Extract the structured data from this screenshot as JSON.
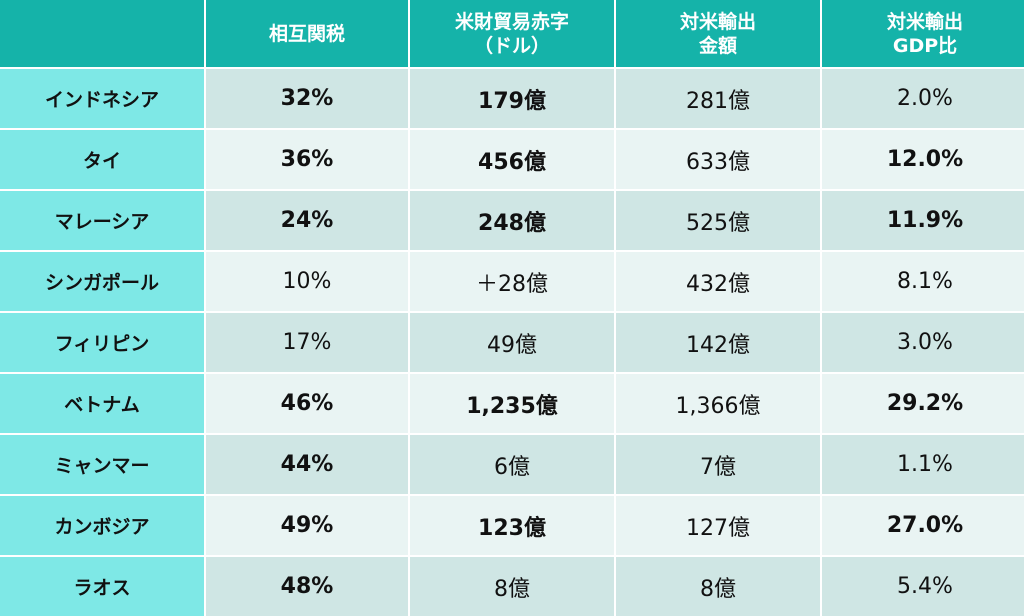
{
  "header": {
    "corner": "",
    "col1": "相互関税",
    "col2_line1": "米財貿易赤字",
    "col2_line2": "（ドル）",
    "col3_line1": "対米輸出",
    "col3_line2": "金額",
    "col4_line1": "対米輸出",
    "col4_line2": "GDP比"
  },
  "rows": [
    {
      "country": "インドネシア",
      "tariff": "32%",
      "deficit": "179億",
      "exports": "281億",
      "gdp": "2.0%"
    },
    {
      "country": "タイ",
      "tariff": "36%",
      "deficit": "456億",
      "exports": "633億",
      "gdp": "12.0%"
    },
    {
      "country": "マレーシア",
      "tariff": "24%",
      "deficit": "248億",
      "exports": "525億",
      "gdp": "11.9%"
    },
    {
      "country": "シンガポール",
      "tariff": "10%",
      "deficit": "＋28億",
      "exports": "432億",
      "gdp": "8.1%"
    },
    {
      "country": "フィリピン",
      "tariff": "17%",
      "deficit": "49億",
      "exports": "142億",
      "gdp": "3.0%"
    },
    {
      "country": "ベトナム",
      "tariff": "46%",
      "deficit": "1,235億",
      "exports": "1,366億",
      "gdp": "29.2%"
    },
    {
      "country": "ミャンマー",
      "tariff": "44%",
      "deficit": "6億",
      "exports": "7億",
      "gdp": "1.1%"
    },
    {
      "country": "カンボジア",
      "tariff": "49%",
      "deficit": "123億",
      "exports": "127億",
      "gdp": "27.0%"
    },
    {
      "country": "ラオス",
      "tariff": "48%",
      "deficit": "8億",
      "exports": "8億",
      "gdp": "5.4%"
    }
  ],
  "colors": {
    "header_bg": "#15b3a9",
    "label_bg": "#7ee8e6",
    "row_dark": "#cfe6e4",
    "row_light": "#e9f4f3"
  }
}
